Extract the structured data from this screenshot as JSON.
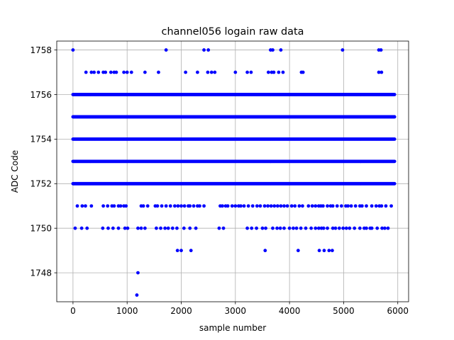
{
  "chart_data": {
    "type": "scatter",
    "title": "channel056 logain raw data",
    "xlabel": "sample number",
    "ylabel": "ADC Code",
    "xlim": [
      -300,
      6200
    ],
    "ylim": [
      1746.7,
      1758.4
    ],
    "xticks": [
      0,
      1000,
      2000,
      3000,
      4000,
      5000,
      6000
    ],
    "yticks": [
      1748,
      1750,
      1752,
      1754,
      1756,
      1758
    ],
    "grid": true,
    "marker_color": "#0000ff",
    "n_samples": 5950,
    "dense_levels": [
      1752,
      1753,
      1754,
      1755,
      1756
    ],
    "sparse_levels": [
      {
        "y": 1751,
        "x": [
          80,
          170,
          230,
          340,
          560,
          640,
          720,
          760,
          840,
          880,
          940,
          980,
          1260,
          1300,
          1380,
          1520,
          1560,
          1640,
          1720,
          1800,
          1880,
          1940,
          2000,
          2060,
          2130,
          2160,
          2230,
          2300,
          2340,
          2420,
          2720,
          2760,
          2820,
          2860,
          2940,
          3000,
          3060,
          3100,
          3160,
          3240,
          3320,
          3400,
          3460,
          3540,
          3600,
          3660,
          3720,
          3780,
          3840,
          3900,
          3960,
          4040,
          4100,
          4180,
          4240,
          4350,
          4420,
          4480,
          4540,
          4580,
          4620,
          4700,
          4760,
          4800,
          4880,
          4960,
          5040,
          5080,
          5140,
          5220,
          5300,
          5340,
          5420,
          5520,
          5600,
          5660,
          5700,
          5780,
          5880
        ]
      },
      {
        "y": 1750,
        "x": [
          40,
          160,
          260,
          550,
          650,
          740,
          840,
          960,
          1010,
          1200,
          1260,
          1330,
          1540,
          1620,
          1700,
          1760,
          1840,
          1920,
          2050,
          2160,
          2270,
          2700,
          2780,
          3220,
          3300,
          3390,
          3500,
          3560,
          3690,
          3770,
          3830,
          3900,
          4000,
          4070,
          4130,
          4210,
          4300,
          4400,
          4480,
          4540,
          4590,
          4630,
          4700,
          4800,
          4850,
          4920,
          4990,
          5050,
          5110,
          5200,
          5300,
          5380,
          5420,
          5490,
          5520,
          5620,
          5710,
          5760,
          5820
        ]
      },
      {
        "y": 1757,
        "x": [
          240,
          340,
          390,
          470,
          560,
          600,
          700,
          760,
          800,
          940,
          1000,
          1080,
          1330,
          1580,
          2080,
          2300,
          2490,
          2560,
          2620,
          3000,
          3220,
          3290,
          3610,
          3670,
          3710,
          3800,
          3880,
          4220,
          4250,
          5650,
          5700
        ]
      },
      {
        "y": 1758,
        "x": [
          0,
          1720,
          2420,
          2500,
          3650,
          3690,
          3840,
          4980,
          5650,
          5690
        ]
      },
      {
        "y": 1749,
        "x": [
          1930,
          2000,
          2180,
          3550,
          4160,
          4550,
          4640,
          4730,
          4790
        ]
      },
      {
        "y": 1748,
        "x": [
          1200
        ]
      },
      {
        "y": 1747,
        "x": [
          1180
        ]
      }
    ]
  }
}
